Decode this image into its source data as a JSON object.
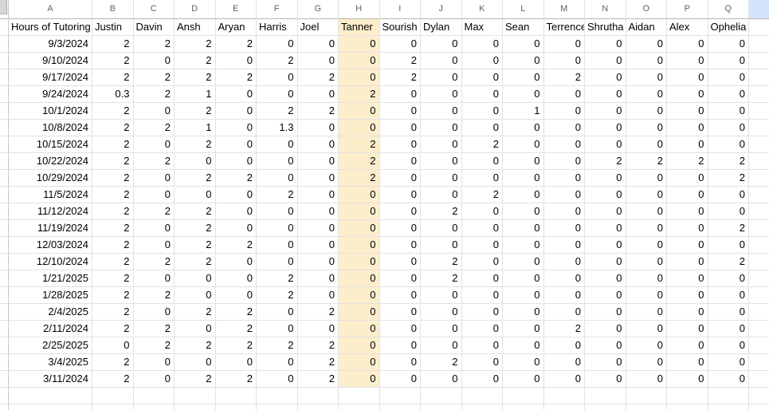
{
  "sheet": {
    "column_letters": [
      "A",
      "B",
      "C",
      "D",
      "E",
      "F",
      "G",
      "H",
      "I",
      "J",
      "K",
      "L",
      "M",
      "N",
      "O",
      "P",
      "Q"
    ],
    "header_row": {
      "label": "Hours of Tutoring",
      "names": [
        "Justin",
        "Davin",
        "Ansh",
        "Aryan",
        "Harris",
        "Joel",
        "Tanner",
        "Sourish",
        "Dylan",
        "Max",
        "Sean",
        "Terrence",
        "Shrutha",
        "Aidan",
        "Alex",
        "Ophelia"
      ]
    },
    "highlighted_column": {
      "letter": "H",
      "name": "Tanner"
    },
    "rows": [
      {
        "date": "9/3/2024",
        "values": [
          2,
          2,
          2,
          2,
          0,
          0,
          0,
          0,
          0,
          0,
          0,
          0,
          0,
          0,
          0,
          0
        ]
      },
      {
        "date": "9/10/2024",
        "values": [
          2,
          0,
          2,
          0,
          2,
          0,
          0,
          2,
          0,
          0,
          0,
          0,
          0,
          0,
          0,
          0
        ]
      },
      {
        "date": "9/17/2024",
        "values": [
          2,
          2,
          2,
          2,
          0,
          2,
          0,
          2,
          0,
          0,
          0,
          2,
          0,
          0,
          0,
          0
        ]
      },
      {
        "date": "9/24/2024",
        "values": [
          0.3,
          2,
          1,
          0,
          0,
          0,
          2,
          0,
          0,
          0,
          0,
          0,
          0,
          0,
          0,
          0
        ]
      },
      {
        "date": "10/1/2024",
        "values": [
          2,
          0,
          2,
          0,
          2,
          2,
          0,
          0,
          0,
          0,
          1,
          0,
          0,
          0,
          0,
          0
        ]
      },
      {
        "date": "10/8/2024",
        "values": [
          2,
          2,
          1,
          0,
          1.3,
          0,
          0,
          0,
          0,
          0,
          0,
          0,
          0,
          0,
          0,
          0
        ]
      },
      {
        "date": "10/15/2024",
        "values": [
          2,
          0,
          2,
          0,
          0,
          0,
          2,
          0,
          0,
          2,
          0,
          0,
          0,
          0,
          0,
          0
        ]
      },
      {
        "date": "10/22/2024",
        "values": [
          2,
          2,
          0,
          0,
          0,
          0,
          2,
          0,
          0,
          0,
          0,
          0,
          2,
          2,
          2,
          2
        ]
      },
      {
        "date": "10/29/2024",
        "values": [
          2,
          0,
          2,
          2,
          0,
          0,
          2,
          0,
          0,
          0,
          0,
          0,
          0,
          0,
          0,
          2
        ]
      },
      {
        "date": "11/5/2024",
        "values": [
          2,
          0,
          0,
          0,
          2,
          0,
          0,
          0,
          0,
          2,
          0,
          0,
          0,
          0,
          0,
          0
        ]
      },
      {
        "date": "11/12/2024",
        "values": [
          2,
          2,
          2,
          0,
          0,
          0,
          0,
          0,
          2,
          0,
          0,
          0,
          0,
          0,
          0,
          0
        ]
      },
      {
        "date": "11/19/2024",
        "values": [
          2,
          0,
          2,
          0,
          0,
          0,
          0,
          0,
          0,
          0,
          0,
          0,
          0,
          0,
          0,
          2
        ]
      },
      {
        "date": "12/03/2024",
        "values": [
          2,
          0,
          2,
          2,
          0,
          0,
          0,
          0,
          0,
          0,
          0,
          0,
          0,
          0,
          0,
          0
        ]
      },
      {
        "date": "12/10/2024",
        "values": [
          2,
          2,
          2,
          0,
          0,
          0,
          0,
          0,
          2,
          0,
          0,
          0,
          0,
          0,
          0,
          2
        ]
      },
      {
        "date": "1/21/2025",
        "values": [
          2,
          0,
          0,
          0,
          2,
          0,
          0,
          0,
          2,
          0,
          0,
          0,
          0,
          0,
          0,
          0
        ]
      },
      {
        "date": "1/28/2025",
        "values": [
          2,
          2,
          0,
          0,
          2,
          0,
          0,
          0,
          0,
          0,
          0,
          0,
          0,
          0,
          0,
          0
        ]
      },
      {
        "date": "2/4/2025",
        "values": [
          2,
          0,
          2,
          2,
          0,
          2,
          0,
          0,
          0,
          0,
          0,
          0,
          0,
          0,
          0,
          0
        ]
      },
      {
        "date": "2/11/2024",
        "values": [
          2,
          2,
          0,
          2,
          0,
          0,
          0,
          0,
          0,
          0,
          0,
          2,
          0,
          0,
          0,
          0
        ]
      },
      {
        "date": "2/25/2025",
        "values": [
          0,
          2,
          2,
          2,
          2,
          2,
          0,
          0,
          0,
          0,
          0,
          0,
          0,
          0,
          0,
          0
        ]
      },
      {
        "date": "3/4/2025",
        "values": [
          2,
          0,
          0,
          0,
          0,
          2,
          0,
          0,
          2,
          0,
          0,
          0,
          0,
          0,
          0,
          0
        ]
      },
      {
        "date": "3/11/2024",
        "values": [
          2,
          0,
          2,
          2,
          0,
          2,
          0,
          0,
          0,
          0,
          0,
          0,
          0,
          0,
          0,
          0
        ]
      }
    ],
    "trailing_empty_rows": 2,
    "colors": {
      "column_highlight": "#fceecb",
      "adjacent_selected_header": "#d3e3fd",
      "gridline": "#e2e2e2",
      "header_strip_border": "#b7b7b7",
      "column_letter_text": "#5f6368"
    }
  }
}
